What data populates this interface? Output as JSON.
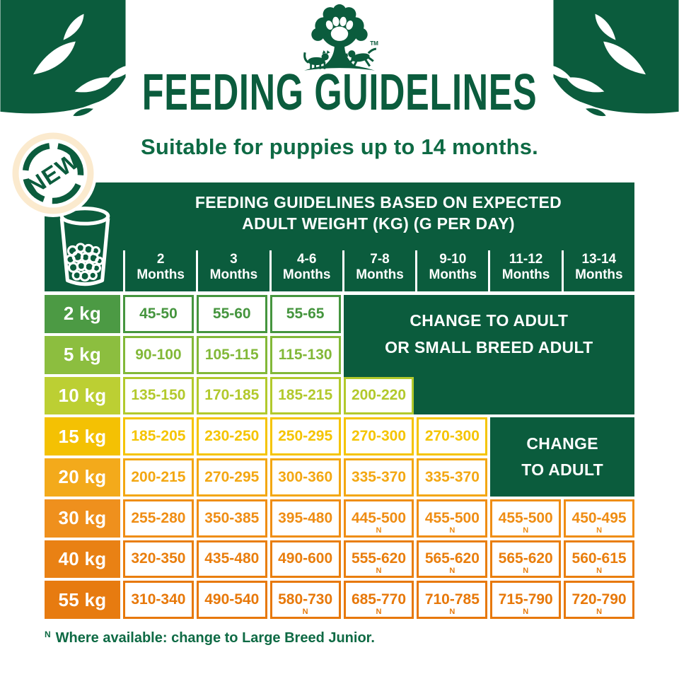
{
  "page": {
    "title": "FEEDING GUIDELINES",
    "subtitle": "Suitable for puppies up to 14 months.",
    "badge_label": "NEW"
  },
  "brand": {
    "trademark": "TM"
  },
  "colors": {
    "brand_green": "#0b5c3d",
    "subtitle_green": "#0e6a44",
    "badge_ring_cream": "#fbeace",
    "cell_background": "#ffffff"
  },
  "chart_data": {
    "type": "table",
    "title_lines": [
      "FEEDING GUIDELINES BASED ON EXPECTED",
      "ADULT WEIGHT (KG) (G PER DAY)"
    ],
    "columns": [
      {
        "num": "2",
        "word": "Months"
      },
      {
        "num": "3",
        "word": "Months"
      },
      {
        "num": "4-6",
        "word": "Months"
      },
      {
        "num": "7-8",
        "word": "Months"
      },
      {
        "num": "9-10",
        "word": "Months"
      },
      {
        "num": "11-12",
        "word": "Months"
      },
      {
        "num": "13-14",
        "word": "Months"
      }
    ],
    "rows": [
      {
        "weight": "2 kg",
        "row_color": "#4c9a44",
        "cell_color": "#45953e",
        "values": [
          {
            "v": "45-50",
            "n": false
          },
          {
            "v": "55-60",
            "n": false
          },
          {
            "v": "55-65",
            "n": false
          }
        ]
      },
      {
        "weight": "5 kg",
        "row_color": "#8cbe3f",
        "cell_color": "#82b838",
        "values": [
          {
            "v": "90-100",
            "n": false
          },
          {
            "v": "105-115",
            "n": false
          },
          {
            "v": "115-130",
            "n": false
          }
        ]
      },
      {
        "weight": "10 kg",
        "row_color": "#bccf33",
        "cell_color": "#b2c92c",
        "values": [
          {
            "v": "135-150",
            "n": false
          },
          {
            "v": "170-185",
            "n": false
          },
          {
            "v": "185-215",
            "n": false
          },
          {
            "v": "200-220",
            "n": false
          }
        ]
      },
      {
        "weight": "15 kg",
        "row_color": "#f4c103",
        "cell_color": "#f5c400",
        "values": [
          {
            "v": "185-205",
            "n": false
          },
          {
            "v": "230-250",
            "n": false
          },
          {
            "v": "250-295",
            "n": false
          },
          {
            "v": "270-300",
            "n": false
          },
          {
            "v": "270-300",
            "n": false
          }
        ]
      },
      {
        "weight": "20 kg",
        "row_color": "#f3aa1b",
        "cell_color": "#f3a712",
        "values": [
          {
            "v": "200-215",
            "n": false
          },
          {
            "v": "270-295",
            "n": false
          },
          {
            "v": "300-360",
            "n": false
          },
          {
            "v": "335-370",
            "n": false
          },
          {
            "v": "335-370",
            "n": false
          }
        ]
      },
      {
        "weight": "30 kg",
        "row_color": "#ef901d",
        "cell_color": "#ef8d14",
        "values": [
          {
            "v": "255-280",
            "n": false
          },
          {
            "v": "350-385",
            "n": false
          },
          {
            "v": "395-480",
            "n": false
          },
          {
            "v": "445-500",
            "n": true
          },
          {
            "v": "455-500",
            "n": true
          },
          {
            "v": "455-500",
            "n": true
          },
          {
            "v": "450-495",
            "n": true
          }
        ]
      },
      {
        "weight": "40 kg",
        "row_color": "#e98114",
        "cell_color": "#e97e0d",
        "values": [
          {
            "v": "320-350",
            "n": false
          },
          {
            "v": "435-480",
            "n": false
          },
          {
            "v": "490-600",
            "n": false
          },
          {
            "v": "555-620",
            "n": true
          },
          {
            "v": "565-620",
            "n": true
          },
          {
            "v": "565-620",
            "n": true
          },
          {
            "v": "560-615",
            "n": true
          }
        ]
      },
      {
        "weight": "55 kg",
        "row_color": "#e77b10",
        "cell_color": "#e77809",
        "values": [
          {
            "v": "310-340",
            "n": false
          },
          {
            "v": "490-540",
            "n": false
          },
          {
            "v": "580-730",
            "n": true
          },
          {
            "v": "685-770",
            "n": true
          },
          {
            "v": "710-785",
            "n": true
          },
          {
            "v": "715-790",
            "n": true
          },
          {
            "v": "720-790",
            "n": true
          }
        ]
      }
    ],
    "merged_regions": [
      {
        "label_lines": [
          "CHANGE TO ADULT",
          "OR SMALL BREED ADULT"
        ]
      },
      {
        "label_lines": [
          "CHANGE",
          "TO ADULT"
        ]
      }
    ],
    "footnote_marker": "N",
    "footnote_text": "Where available: change to Large Breed Junior."
  }
}
